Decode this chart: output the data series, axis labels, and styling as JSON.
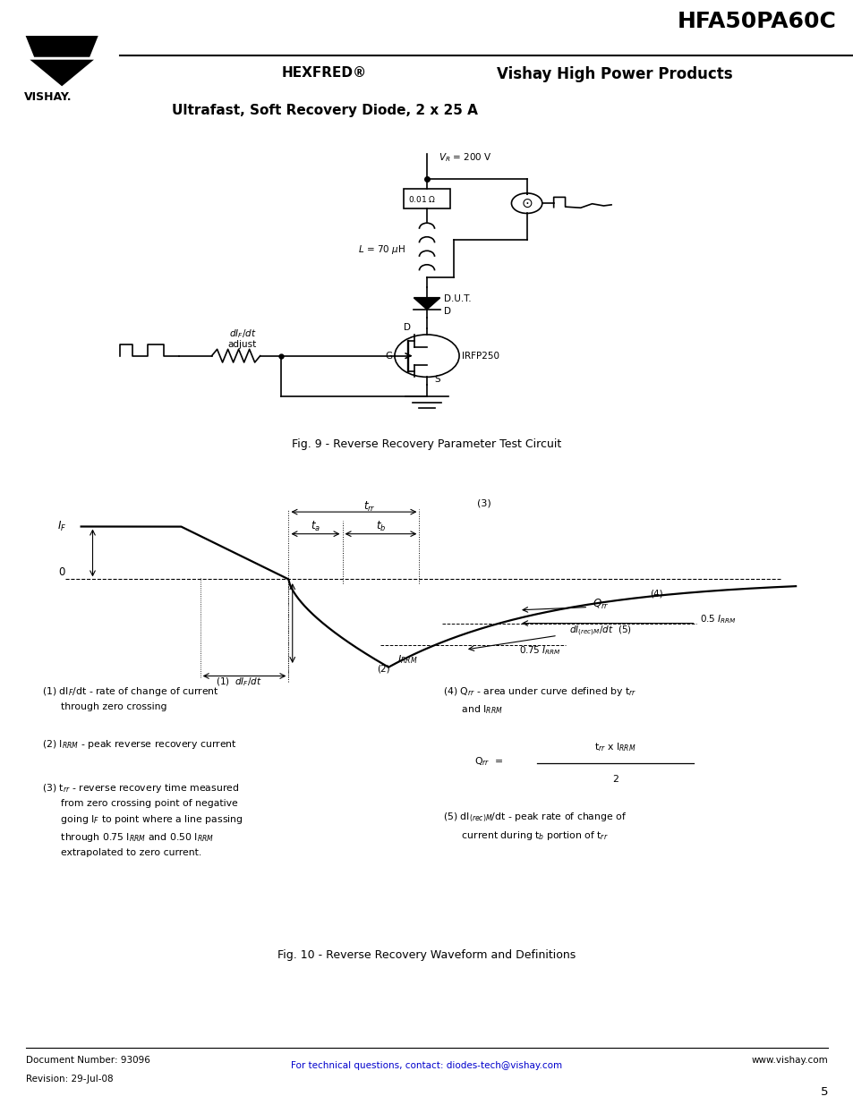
{
  "title": "HFA50PA60C",
  "subtitle1": "HEXFRED®",
  "subtitle2": "Vishay High Power Products",
  "subtitle3": "Ultrafast, Soft Recovery Diode, 2 x 25 A",
  "fig9_caption": "Fig. 9 - Reverse Recovery Parameter Test Circuit",
  "fig10_caption": "Fig. 10 - Reverse Recovery Waveform and Definitions",
  "footer_doc": "Document Number: 93096",
  "footer_rev": "Revision: 29-Jul-08",
  "footer_contact": "For technical questions, contact: diodes-tech@vishay.com",
  "footer_web": "www.vishay.com",
  "footer_page": "5"
}
